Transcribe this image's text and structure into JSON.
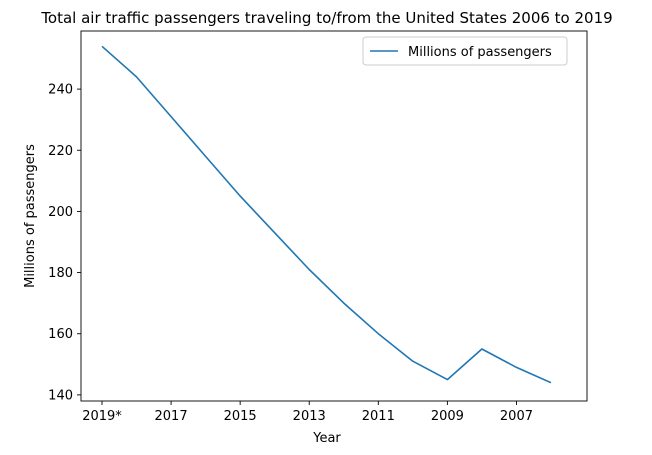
{
  "chart_data": {
    "type": "line",
    "title": "Total air traffic passengers traveling to/from the United States 2006 to 2019",
    "xlabel": "Year",
    "ylabel": "Millions of passengers",
    "x": [
      "2019*",
      "2018",
      "2017",
      "2016",
      "2015",
      "2014",
      "2013",
      "2012",
      "2011",
      "2010",
      "2009",
      "2008",
      "2007",
      "2006"
    ],
    "x_tick_labels": [
      "2019*",
      "2017",
      "2015",
      "2013",
      "2011",
      "2009",
      "2007"
    ],
    "y_ticks": [
      140,
      160,
      180,
      200,
      220,
      240
    ],
    "ylim": [
      138,
      259
    ],
    "series": [
      {
        "name": "Millions of passengers",
        "color": "#1f77b4",
        "values": [
          254,
          244,
          231,
          218,
          205,
          193,
          181,
          170,
          160,
          151,
          145,
          155,
          149,
          144
        ]
      }
    ],
    "legend_position": "top-right",
    "grid": false
  }
}
